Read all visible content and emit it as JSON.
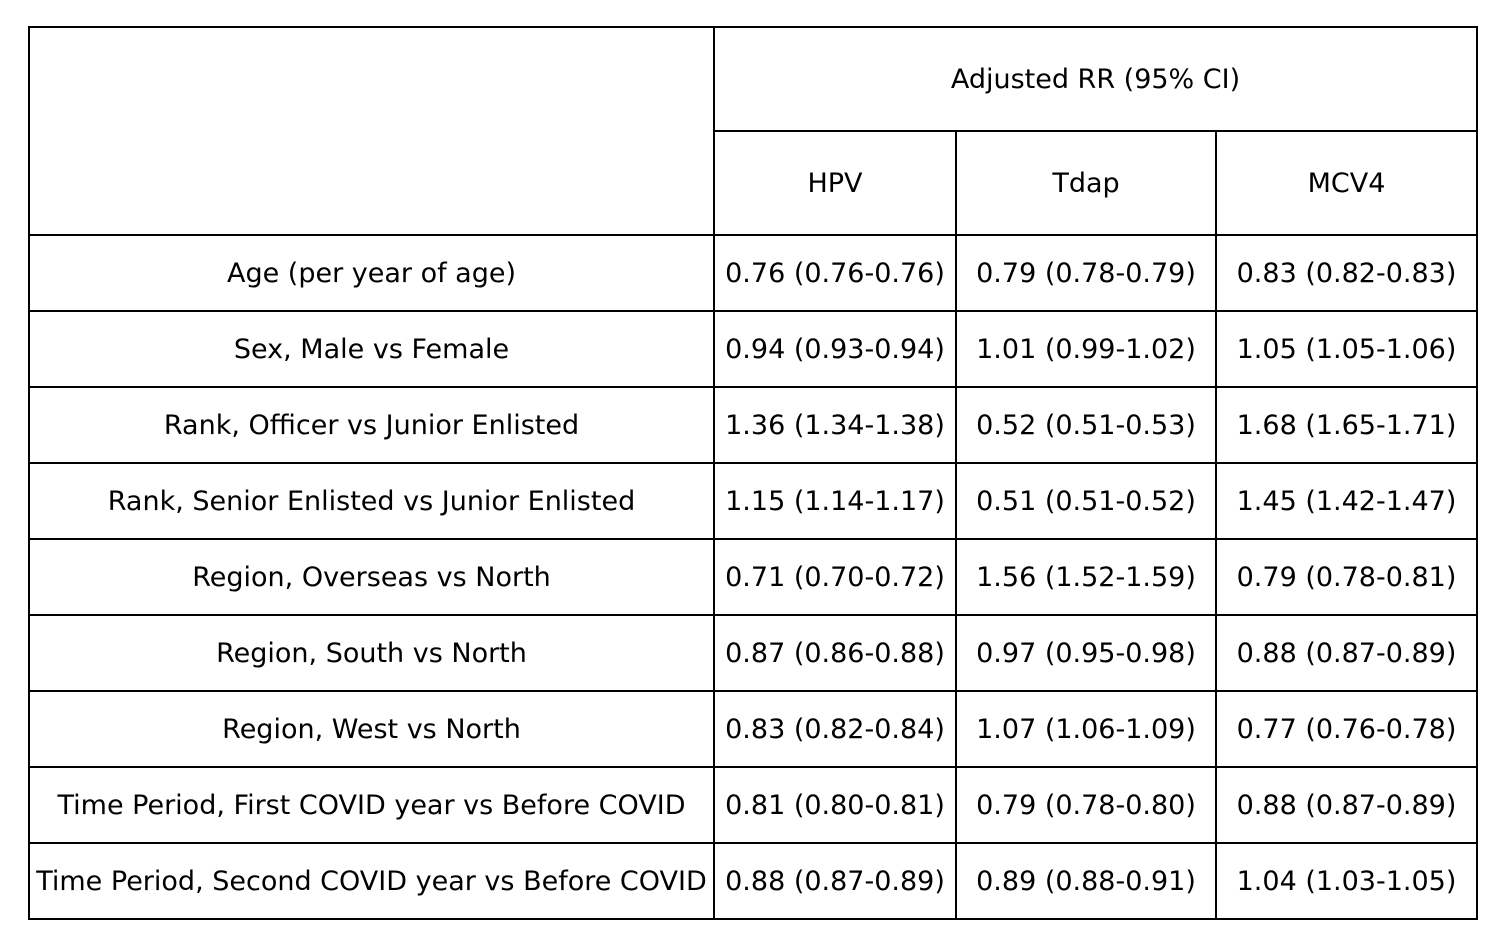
{
  "table": {
    "group_header": "Adjusted RR (95% CI)",
    "columns": [
      "HPV",
      "Tdap",
      "MCV4"
    ],
    "rows": [
      {
        "label": "Age (per year of age)",
        "hpv": "0.76 (0.76-0.76)",
        "tdap": "0.79 (0.78-0.79)",
        "mcv4": "0.83 (0.82-0.83)"
      },
      {
        "label": "Sex, Male vs Female",
        "hpv": "0.94 (0.93-0.94)",
        "tdap": "1.01 (0.99-1.02)",
        "mcv4": "1.05 (1.05-1.06)"
      },
      {
        "label": "Rank, Officer vs Junior Enlisted",
        "hpv": "1.36 (1.34-1.38)",
        "tdap": "0.52 (0.51-0.53)",
        "mcv4": "1.68 (1.65-1.71)"
      },
      {
        "label": "Rank, Senior Enlisted vs Junior Enlisted",
        "hpv": "1.15 (1.14-1.17)",
        "tdap": "0.51 (0.51-0.52)",
        "mcv4": "1.45 (1.42-1.47)"
      },
      {
        "label": "Region, Overseas vs North",
        "hpv": "0.71 (0.70-0.72)",
        "tdap": "1.56 (1.52-1.59)",
        "mcv4": "0.79 (0.78-0.81)"
      },
      {
        "label": "Region, South vs North",
        "hpv": "0.87 (0.86-0.88)",
        "tdap": "0.97 (0.95-0.98)",
        "mcv4": "0.88 (0.87-0.89)"
      },
      {
        "label": "Region, West vs North",
        "hpv": "0.83 (0.82-0.84)",
        "tdap": "1.07 (1.06-1.09)",
        "mcv4": "0.77 (0.76-0.78)"
      },
      {
        "label": "Time Period, First COVID year vs Before COVID",
        "hpv": "0.81 (0.80-0.81)",
        "tdap": "0.79 (0.78-0.80)",
        "mcv4": "0.88 (0.87-0.89)"
      },
      {
        "label": "Time Period, Second COVID year vs Before COVID",
        "hpv": "0.88 (0.87-0.89)",
        "tdap": "0.89 (0.88-0.91)",
        "mcv4": "1.04 (1.03-1.05)"
      }
    ]
  }
}
